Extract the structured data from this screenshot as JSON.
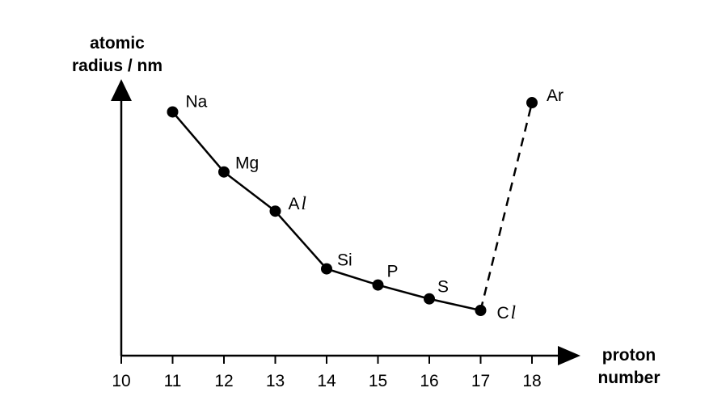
{
  "chart_data": {
    "type": "line",
    "title": "",
    "ylabel": [
      "atomic",
      "radius / nm"
    ],
    "xlabel": [
      "proton",
      "number"
    ],
    "x_ticks": [
      "10",
      "11",
      "12",
      "13",
      "14",
      "15",
      "16",
      "17",
      "18"
    ],
    "xlim": [
      10,
      18
    ],
    "y_ticks_shown": false,
    "grid": false,
    "legend": "none",
    "series": [
      {
        "style": "solid",
        "points": [
          {
            "label": "Na",
            "x": 11,
            "y": 0.186
          },
          {
            "label": "Mg",
            "x": 12,
            "y": 0.16
          },
          {
            "label": "Al",
            "x": 13,
            "y": 0.143
          },
          {
            "label": "Si",
            "x": 14,
            "y": 0.118
          },
          {
            "label": "P",
            "x": 15,
            "y": 0.111
          },
          {
            "label": "S",
            "x": 16,
            "y": 0.105
          },
          {
            "label": "Cl",
            "x": 17,
            "y": 0.1
          }
        ]
      },
      {
        "style": "dashed",
        "points": [
          {
            "label": "Cl",
            "x": 17,
            "y": 0.1
          },
          {
            "label": "Ar",
            "x": 18,
            "y": 0.19
          }
        ]
      }
    ],
    "label_parts": {
      "Al": [
        "A",
        "l"
      ],
      "Cl": [
        "C",
        "l"
      ]
    },
    "colors": {
      "line": "#000000",
      "marker": "#000000"
    }
  }
}
